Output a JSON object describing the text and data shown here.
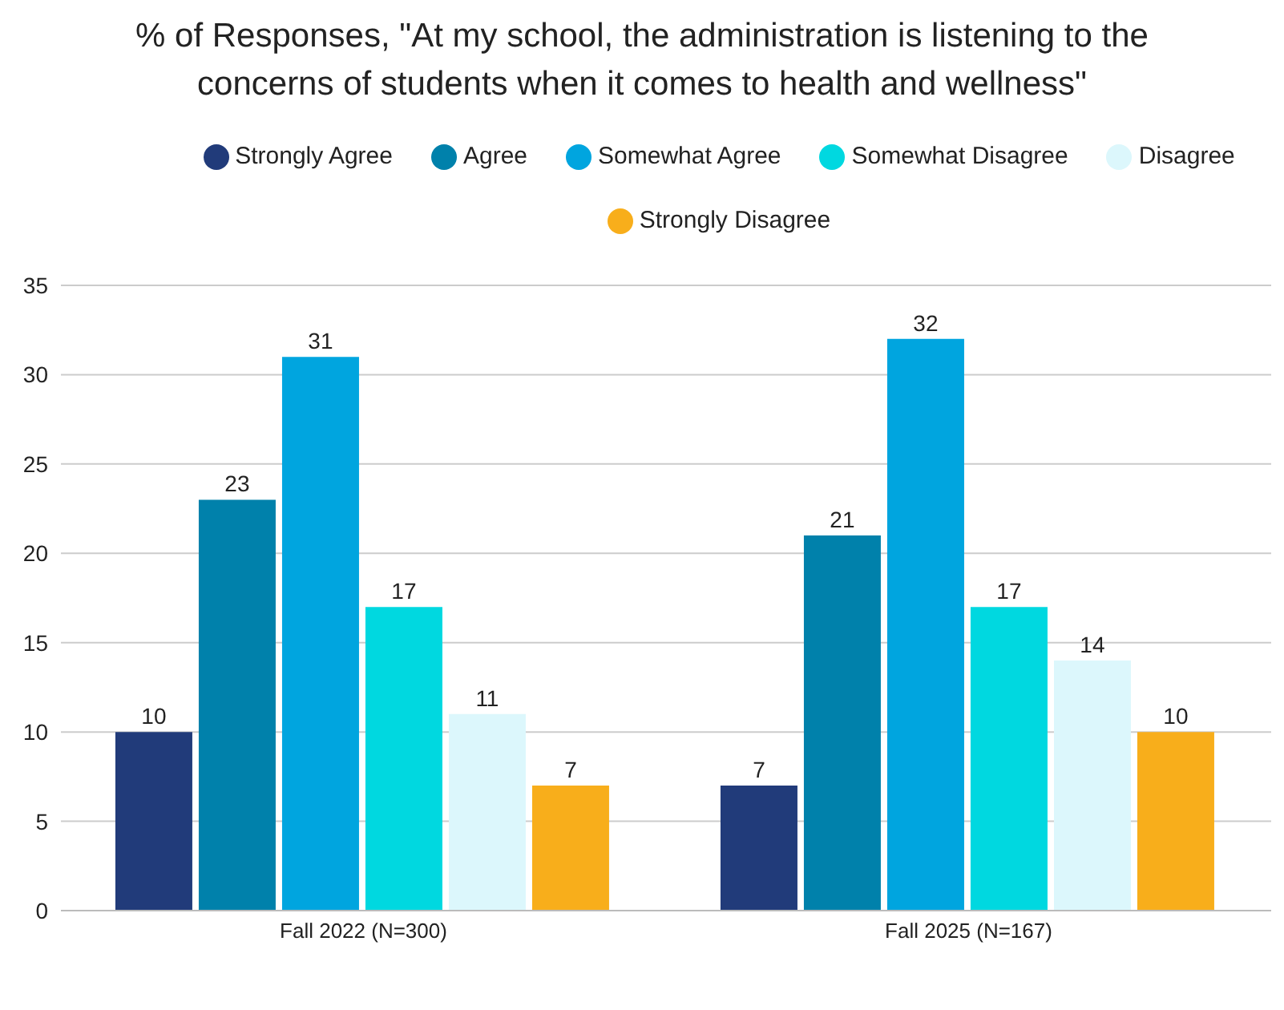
{
  "chart_data": {
    "type": "bar",
    "title": "% of Responses, \"At my school, the administration is listening to the concerns of students when it comes to health and wellness\"",
    "categories": [
      "Fall 2022 (N=300)",
      "Fall 2025 (N=167)"
    ],
    "series": [
      {
        "name": "Strongly Agree",
        "color": "#213b7a",
        "values": [
          10,
          7
        ]
      },
      {
        "name": "Agree",
        "color": "#0081ab",
        "values": [
          23,
          21
        ]
      },
      {
        "name": "Somewhat Agree",
        "color": "#00a5df",
        "values": [
          31,
          32
        ]
      },
      {
        "name": "Somewhat Disagree",
        "color": "#00d8e0",
        "values": [
          17,
          17
        ]
      },
      {
        "name": "Disagree",
        "color": "#dcf7fc",
        "values": [
          11,
          14
        ]
      },
      {
        "name": "Strongly Disagree",
        "color": "#f8ae1b",
        "values": [
          7,
          10
        ]
      }
    ],
    "ylim": [
      0,
      35
    ],
    "yticks": [
      0,
      5,
      10,
      15,
      20,
      25,
      30,
      35
    ],
    "grid": "y",
    "legend": "top",
    "data_labels": true
  }
}
